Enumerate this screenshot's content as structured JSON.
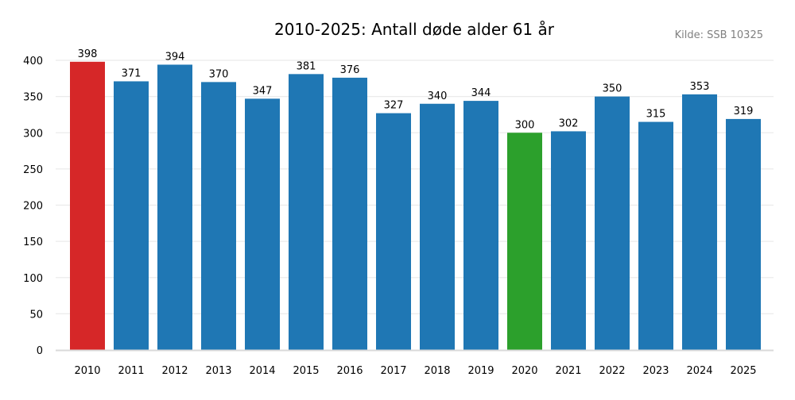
{
  "chart_data": {
    "type": "bar",
    "title": "2010-2025: Antall døde alder 61 år",
    "source": "Kilde: SSB 10325",
    "xlabel": "",
    "ylabel": "",
    "ylim": [
      0,
      400
    ],
    "yticks": [
      0,
      50,
      100,
      150,
      200,
      250,
      300,
      350,
      400
    ],
    "grid": true,
    "categories": [
      "2010",
      "2011",
      "2012",
      "2013",
      "2014",
      "2015",
      "2016",
      "2017",
      "2018",
      "2019",
      "2020",
      "2021",
      "2022",
      "2023",
      "2024",
      "2025"
    ],
    "values": [
      398,
      371,
      394,
      370,
      347,
      381,
      376,
      327,
      340,
      344,
      300,
      302,
      350,
      315,
      353,
      319
    ],
    "colors": {
      "default": "#1f77b4",
      "highlight_max": "#d62728",
      "highlight_min": "#2ca02c",
      "grid": "#ebebeb",
      "axis": "#d9d9d9",
      "source_text": "#808080"
    }
  }
}
